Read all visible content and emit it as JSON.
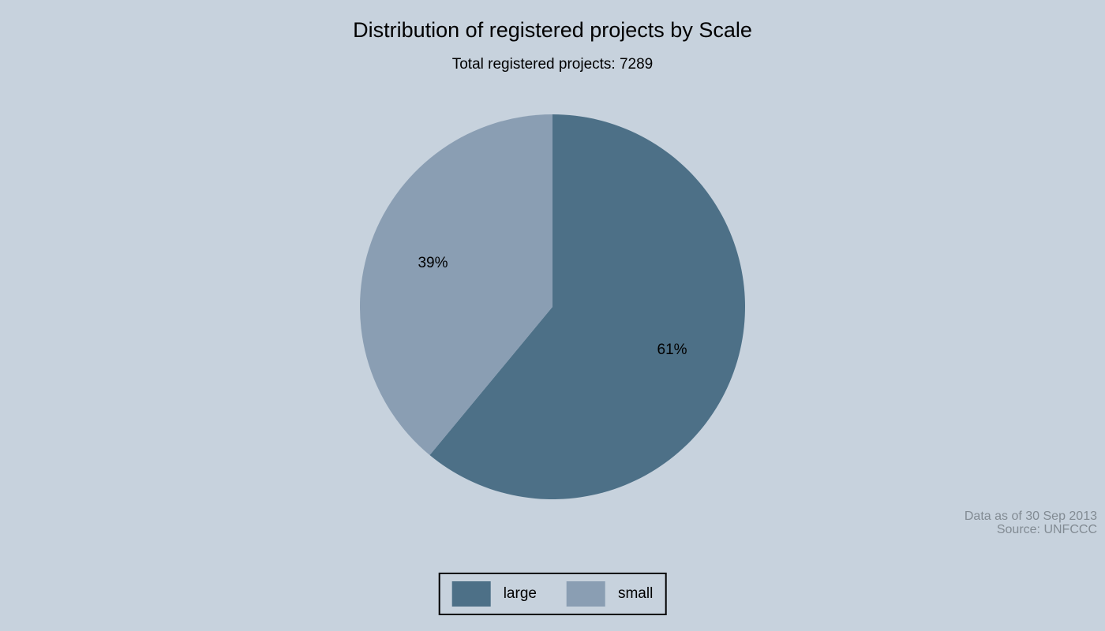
{
  "canvas": {
    "background": "#c7d2dd"
  },
  "header": {
    "title": "Distribution of registered projects by Scale",
    "subtitle": "Total registered projects: 7289"
  },
  "chart_data": {
    "type": "pie",
    "title": "Distribution of registered projects by Scale",
    "subtitle": "Total registered projects: 7289",
    "total_registered_projects": 7289,
    "start_angle_deg": 0,
    "direction": "clockwise",
    "slices": [
      {
        "name": "large",
        "percent": 61,
        "color": "#4d7087",
        "data_label": "61%"
      },
      {
        "name": "small",
        "percent": 39,
        "color": "#8a9eb3",
        "data_label": "39%"
      }
    ],
    "legend_position": "bottom-center",
    "annotations": [
      "Data as of 30 Sep 2013",
      "Source: UNFCCC"
    ]
  },
  "note": {
    "line1": "Data as of 30 Sep 2013",
    "line2": "Source: UNFCCC",
    "color": "#828b93"
  },
  "legend": {
    "items": [
      {
        "label": "large",
        "color": "#4d7087"
      },
      {
        "label": "small",
        "color": "#8a9eb3"
      }
    ]
  }
}
